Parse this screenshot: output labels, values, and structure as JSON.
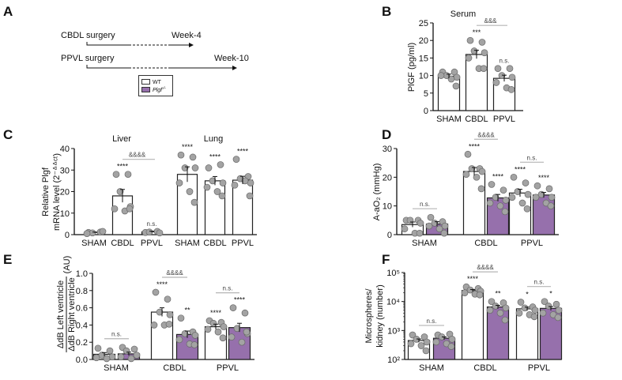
{
  "figure": {
    "panel_labels": [
      "A",
      "B",
      "C",
      "D",
      "E",
      "F"
    ]
  },
  "panel_a": {
    "rows": [
      {
        "label": "CBDL surgery",
        "end": "Week-4"
      },
      {
        "label": "PPVL surgery",
        "end": "Week-10"
      }
    ],
    "legend": [
      {
        "label": "WT",
        "sup": "",
        "color": "#ffffff"
      },
      {
        "label": "Plgf",
        "sup": "-/-",
        "color": "#9670ac"
      }
    ]
  },
  "colors": {
    "wt": "#ffffff",
    "ko": "#9670ac",
    "point": "#a3a3a3",
    "point_edge": "#6a6a6a",
    "bracket": "#b5b5b5"
  },
  "chart_data": [
    {
      "panel": "B",
      "type": "bar",
      "title": "Serum",
      "group_titles": [],
      "ylabel": [
        "PlGF (pg/ml)"
      ],
      "yscale": "linear",
      "ylim": [
        0,
        25
      ],
      "yticks": [
        0,
        5,
        10,
        15,
        20,
        25
      ],
      "ytick_labels": [
        "0",
        "5",
        "10",
        "15",
        "20",
        "25"
      ],
      "xtick_labels": [
        "SHAM",
        "CBDL",
        "PPVL"
      ],
      "bars": [
        {
          "category": "SHAM",
          "genotype": "WT",
          "value": 9.8,
          "sem": 0.6,
          "points": [
            11,
            11,
            10,
            9.5,
            10,
            9,
            7
          ],
          "stars": ""
        },
        {
          "category": "CBDL",
          "genotype": "WT",
          "value": 16,
          "sem": 1.2,
          "points": [
            20,
            19.5,
            17,
            16.5,
            15,
            12,
            12
          ],
          "stars": "***"
        },
        {
          "category": "PPVL",
          "genotype": "WT",
          "value": 9.2,
          "sem": 0.9,
          "points": [
            12,
            12,
            10,
            9.5,
            8,
            6.5,
            6
          ],
          "stars": "n.s."
        }
      ],
      "brackets": [
        {
          "from": 1,
          "to": 2,
          "label": "&&&"
        }
      ]
    },
    {
      "panel": "C",
      "type": "bar",
      "title": "",
      "group_titles": [
        "Liver",
        "Lung"
      ],
      "ylabel": [
        "Relative Plgf",
        "mRNA level (2⁻ᐞᐞᶜᵗ)"
      ],
      "yscale": "linear",
      "ylim": [
        0,
        40
      ],
      "yticks": [
        0,
        10,
        20,
        30,
        40
      ],
      "ytick_labels": [
        "0",
        "10",
        "20",
        "30",
        "40"
      ],
      "xtick_labels": [
        "SHAM",
        "CBDL",
        "PPVL",
        "SHAM",
        "CBDL",
        "PPVL"
      ],
      "bars": [
        {
          "category": "Liver SHAM",
          "genotype": "WT",
          "value": 1.0,
          "sem": 0.2,
          "points": [
            1,
            1.2,
            0.8,
            1.5,
            0.5
          ],
          "stars": ""
        },
        {
          "category": "Liver CBDL",
          "genotype": "WT",
          "value": 18,
          "sem": 3,
          "points": [
            28,
            28,
            20,
            13,
            12,
            11,
            12
          ],
          "stars": "****"
        },
        {
          "category": "Liver PPVL",
          "genotype": "WT",
          "value": 1.3,
          "sem": 0.3,
          "points": [
            1,
            1.5,
            1.2,
            0.8
          ],
          "stars": "n.s."
        },
        {
          "category": "Lung SHAM",
          "genotype": "WT",
          "value": 28,
          "sem": 3.5,
          "points": [
            37,
            36,
            31,
            31,
            24,
            20,
            15
          ],
          "stars": "****"
        },
        {
          "category": "Lung CBDL",
          "genotype": "WT",
          "value": 25,
          "sem": 2,
          "points": [
            31,
            32.5,
            25,
            24,
            22,
            20,
            18
          ],
          "stars": "****"
        },
        {
          "category": "Lung PPVL",
          "genotype": "WT",
          "value": 25.3,
          "sem": 1.8,
          "points": [
            35,
            27,
            26,
            24,
            23,
            25,
            18
          ],
          "stars": "****"
        }
      ],
      "brackets": [
        {
          "from": 1,
          "to": 2,
          "label": "&&&&"
        }
      ]
    },
    {
      "panel": "D",
      "type": "bar",
      "title": "",
      "group_titles": [],
      "ylabel": [
        "A-aO₂ (mmHg)"
      ],
      "yscale": "linear",
      "ylim": [
        0,
        30
      ],
      "yticks": [
        0,
        10,
        20,
        30
      ],
      "ytick_labels": [
        "0",
        "10",
        "20",
        "30"
      ],
      "xtick_labels": [
        "SHAM",
        "CBDL",
        "PPVL"
      ],
      "bars": [
        {
          "category": "SHAM",
          "genotype": "WT",
          "value": 3.5,
          "sem": 0.9,
          "points": [
            5,
            5,
            5,
            4,
            2,
            0.5,
            0.5
          ],
          "stars": ""
        },
        {
          "category": "SHAM",
          "genotype": "Plgf-/-",
          "value": 3.7,
          "sem": 0.8,
          "points": [
            6,
            4.5,
            4,
            3,
            3,
            2,
            0.5
          ],
          "stars": ""
        },
        {
          "category": "CBDL",
          "genotype": "WT",
          "value": 22,
          "sem": 1.4,
          "points": [
            28,
            23,
            23,
            22,
            21,
            20,
            16
          ],
          "stars": "****"
        },
        {
          "category": "CBDL",
          "genotype": "Plgf-/-",
          "value": 12.8,
          "sem": 1.2,
          "points": [
            17.5,
            15.5,
            13,
            12,
            11,
            10,
            8
          ],
          "stars": "****"
        },
        {
          "category": "PPVL",
          "genotype": "WT",
          "value": 14.5,
          "sem": 1.3,
          "points": [
            20,
            18,
            15,
            14,
            13,
            11,
            9
          ],
          "stars": "****"
        },
        {
          "category": "PPVL",
          "genotype": "Plgf-/-",
          "value": 13.8,
          "sem": 0.9,
          "points": [
            17,
            16,
            14,
            13,
            13,
            11,
            10
          ],
          "stars": "****"
        }
      ],
      "brackets": [
        {
          "from": 0,
          "to": 1,
          "label": "n.s."
        },
        {
          "from": 2,
          "to": 3,
          "label": "&&&&"
        },
        {
          "from": 4,
          "to": 5,
          "label": "n.s."
        }
      ]
    },
    {
      "panel": "E",
      "type": "bar",
      "title": "",
      "group_titles": [],
      "ylabel": [
        "ΔdB Left ventricle",
        "ΔdB Right ventricle",
        "(AU)"
      ],
      "yscale": "linear",
      "ylim": [
        0,
        1.0
      ],
      "yticks": [
        0,
        0.2,
        0.4,
        0.6,
        0.8,
        1.0
      ],
      "ytick_labels": [
        "0.0",
        "0.2",
        "0.4",
        "0.6",
        "0.8",
        "1.0"
      ],
      "xtick_labels": [
        "SHAM",
        "CBDL",
        "PPVL"
      ],
      "bars": [
        {
          "category": "SHAM",
          "genotype": "WT",
          "value": 0.06,
          "sem": 0.02,
          "points": [
            0.13,
            0.1,
            0.05,
            0.03,
            0.02,
            0.01
          ],
          "stars": ""
        },
        {
          "category": "SHAM",
          "genotype": "Plgf-/-",
          "value": 0.065,
          "sem": 0.02,
          "points": [
            0.14,
            0.12,
            0.1,
            0.05,
            0.03,
            0.01
          ],
          "stars": ""
        },
        {
          "category": "CBDL",
          "genotype": "WT",
          "value": 0.55,
          "sem": 0.05,
          "points": [
            0.78,
            0.7,
            0.55,
            0.52,
            0.4,
            0.4,
            0.41
          ],
          "stars": "****"
        },
        {
          "category": "CBDL",
          "genotype": "Plgf-/-",
          "value": 0.29,
          "sem": 0.04,
          "points": [
            0.48,
            0.32,
            0.3,
            0.28,
            0.23,
            0.18,
            0.17
          ],
          "stars": "**"
        },
        {
          "category": "PPVL",
          "genotype": "WT",
          "value": 0.38,
          "sem": 0.03,
          "points": [
            0.45,
            0.43,
            0.42,
            0.38,
            0.35,
            0.32,
            0.25
          ],
          "stars": "****"
        },
        {
          "category": "PPVL",
          "genotype": "Plgf-/-",
          "value": 0.37,
          "sem": 0.05,
          "points": [
            0.6,
            0.54,
            0.36,
            0.3,
            0.26,
            0.2,
            0.32
          ],
          "stars": "****"
        }
      ],
      "brackets": [
        {
          "from": 0,
          "to": 1,
          "label": "n.s."
        },
        {
          "from": 2,
          "to": 3,
          "label": "&&&&"
        },
        {
          "from": 4,
          "to": 5,
          "label": "n.s."
        }
      ]
    },
    {
      "panel": "F",
      "type": "bar",
      "title": "",
      "group_titles": [],
      "ylabel": [
        "Microspheres/",
        "kidney (number)"
      ],
      "yscale": "log",
      "ylim": [
        100,
        100000
      ],
      "yticks": [
        100,
        1000,
        10000,
        100000
      ],
      "ytick_labels": [
        "10²",
        "10³",
        "10⁴",
        "10⁵"
      ],
      "xtick_labels": [
        "SHAM",
        "CBDL",
        "PPVL"
      ],
      "bars": [
        {
          "category": "SHAM",
          "genotype": "WT",
          "value": 450,
          "sem": 60,
          "points": [
            700,
            600,
            500,
            400,
            350,
            300,
            200
          ],
          "stars": ""
        },
        {
          "category": "SHAM",
          "genotype": "Plgf-/-",
          "value": 540,
          "sem": 60,
          "points": [
            700,
            750,
            600,
            500,
            400,
            350,
            280
          ],
          "stars": ""
        },
        {
          "category": "CBDL",
          "genotype": "WT",
          "value": 24000,
          "sem": 2000,
          "points": [
            32000,
            28000,
            25000,
            23000,
            20000,
            18000,
            17000
          ],
          "stars": "****"
        },
        {
          "category": "CBDL",
          "genotype": "Plgf-/-",
          "value": 6500,
          "sem": 900,
          "points": [
            10000,
            9000,
            7000,
            6000,
            5000,
            4000,
            2300
          ],
          "stars": "**"
        },
        {
          "category": "PPVL",
          "genotype": "WT",
          "value": 5600,
          "sem": 800,
          "points": [
            9500,
            6500,
            6000,
            5000,
            4000,
            3500,
            3000
          ],
          "stars": "*"
        },
        {
          "category": "PPVL",
          "genotype": "Plgf-/-",
          "value": 5800,
          "sem": 900,
          "points": [
            10000,
            8000,
            7000,
            5000,
            4000,
            3500,
            2800
          ],
          "stars": "*"
        }
      ],
      "brackets": [
        {
          "from": 0,
          "to": 1,
          "label": "n.s."
        },
        {
          "from": 2,
          "to": 3,
          "label": "&&&&"
        },
        {
          "from": 4,
          "to": 5,
          "label": "n.s."
        }
      ]
    }
  ]
}
